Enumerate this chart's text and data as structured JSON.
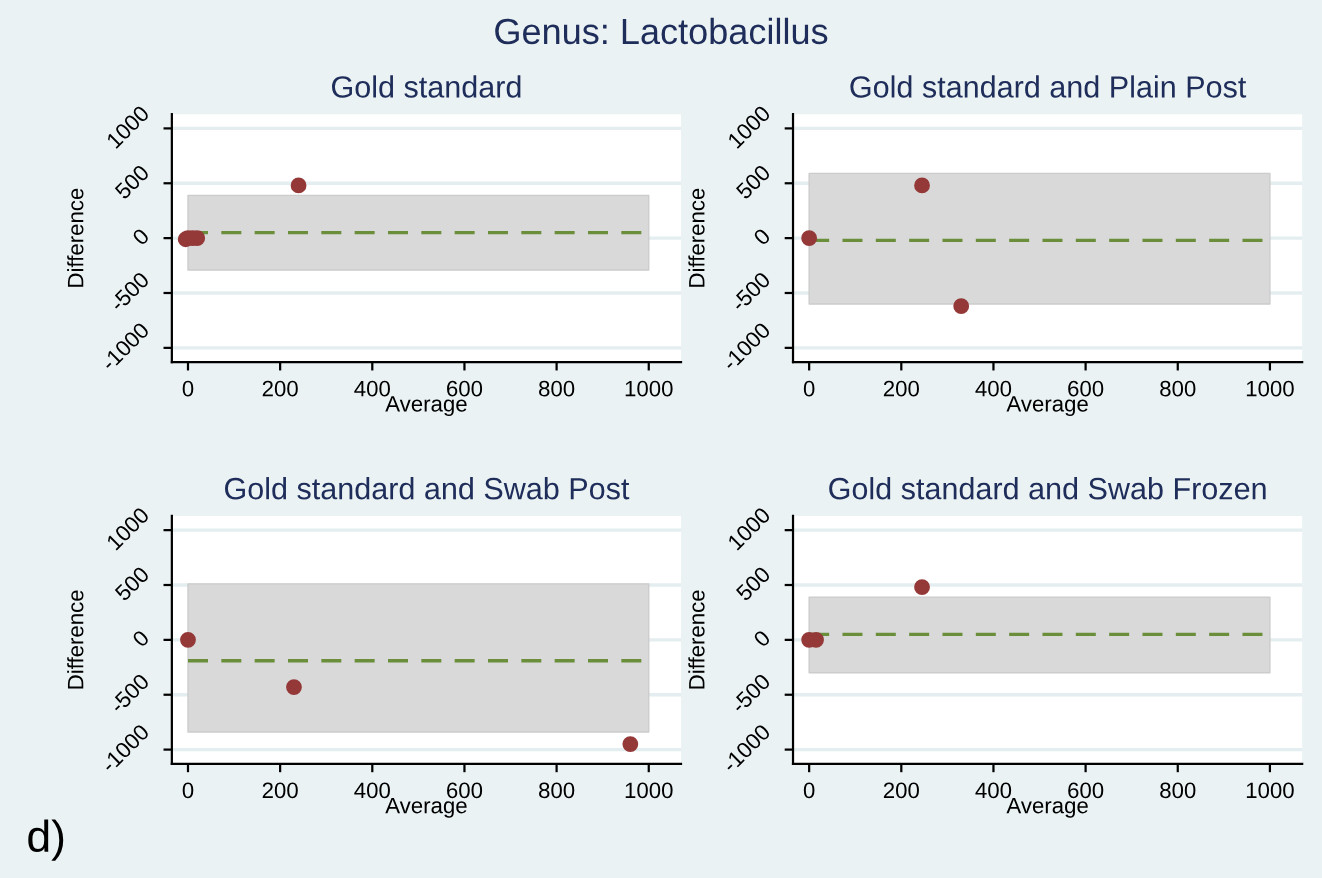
{
  "chart_data": [
    {
      "type": "scatter",
      "title": "Gold standard",
      "xlabel": "Average",
      "ylabel": "Difference",
      "annotations": [
        "Genus: Lactobacillus"
      ],
      "xlim": [
        -35,
        1070
      ],
      "ylim": [
        -1130,
        1130
      ],
      "xticks": [
        0,
        200,
        400,
        600,
        800,
        1000
      ],
      "yticks": [
        -1000,
        -500,
        0,
        500,
        1000
      ],
      "grid": "y",
      "marker": "circle",
      "legend": false,
      "x": [
        0,
        -5,
        10,
        20,
        240
      ],
      "series": [
        {
          "color": "#943838",
          "values": [
            0,
            -10,
            0,
            0,
            480
          ]
        }
      ],
      "ref_lines": [
        {
          "axis": "y",
          "value": 50,
          "color": "#6b8e3a",
          "line_style": "dashed"
        }
      ],
      "bands": [
        {
          "axis": "y",
          "from": -290,
          "to": 390,
          "color": "#d9d9d9"
        }
      ]
    },
    {
      "type": "scatter",
      "title": "Gold standard and Plain Post",
      "xlabel": "Average",
      "ylabel": "Difference",
      "xlim": [
        -35,
        1070
      ],
      "ylim": [
        -1130,
        1130
      ],
      "xticks": [
        0,
        200,
        400,
        600,
        800,
        1000
      ],
      "yticks": [
        -1000,
        -500,
        0,
        500,
        1000
      ],
      "grid": "y",
      "marker": "circle",
      "legend": false,
      "x": [
        0,
        245,
        330
      ],
      "series": [
        {
          "color": "#943838",
          "values": [
            0,
            480,
            -620
          ]
        }
      ],
      "ref_lines": [
        {
          "axis": "y",
          "value": -20,
          "color": "#6b8e3a",
          "line_style": "dashed"
        }
      ],
      "bands": [
        {
          "axis": "y",
          "from": -600,
          "to": 590,
          "color": "#d9d9d9"
        }
      ]
    },
    {
      "type": "scatter",
      "title": "Gold standard and Swab Post",
      "xlabel": "Average",
      "ylabel": "Difference",
      "annotations": [
        "d)"
      ],
      "xlim": [
        -35,
        1070
      ],
      "ylim": [
        -1130,
        1130
      ],
      "xticks": [
        0,
        200,
        400,
        600,
        800,
        1000
      ],
      "yticks": [
        -1000,
        -500,
        0,
        500,
        1000
      ],
      "grid": "y",
      "marker": "circle",
      "legend": false,
      "x": [
        0,
        230,
        960
      ],
      "series": [
        {
          "color": "#943838",
          "values": [
            0,
            -430,
            -950
          ]
        }
      ],
      "ref_lines": [
        {
          "axis": "y",
          "value": -190,
          "color": "#6b8e3a",
          "line_style": "dashed"
        }
      ],
      "bands": [
        {
          "axis": "y",
          "from": -840,
          "to": 510,
          "color": "#d9d9d9"
        }
      ]
    },
    {
      "type": "scatter",
      "title": "Gold standard and Swab Frozen",
      "xlabel": "Average",
      "ylabel": "Difference",
      "xlim": [
        -35,
        1070
      ],
      "ylim": [
        -1130,
        1130
      ],
      "xticks": [
        0,
        200,
        400,
        600,
        800,
        1000
      ],
      "yticks": [
        -1000,
        -500,
        0,
        500,
        1000
      ],
      "grid": "y",
      "marker": "circle",
      "legend": false,
      "x": [
        0,
        15,
        245
      ],
      "series": [
        {
          "color": "#943838",
          "values": [
            0,
            0,
            480
          ]
        }
      ],
      "ref_lines": [
        {
          "axis": "y",
          "value": 50,
          "color": "#6b8e3a",
          "line_style": "dashed"
        }
      ],
      "bands": [
        {
          "axis": "y",
          "from": -300,
          "to": 390,
          "color": "#d9d9d9"
        }
      ]
    }
  ]
}
